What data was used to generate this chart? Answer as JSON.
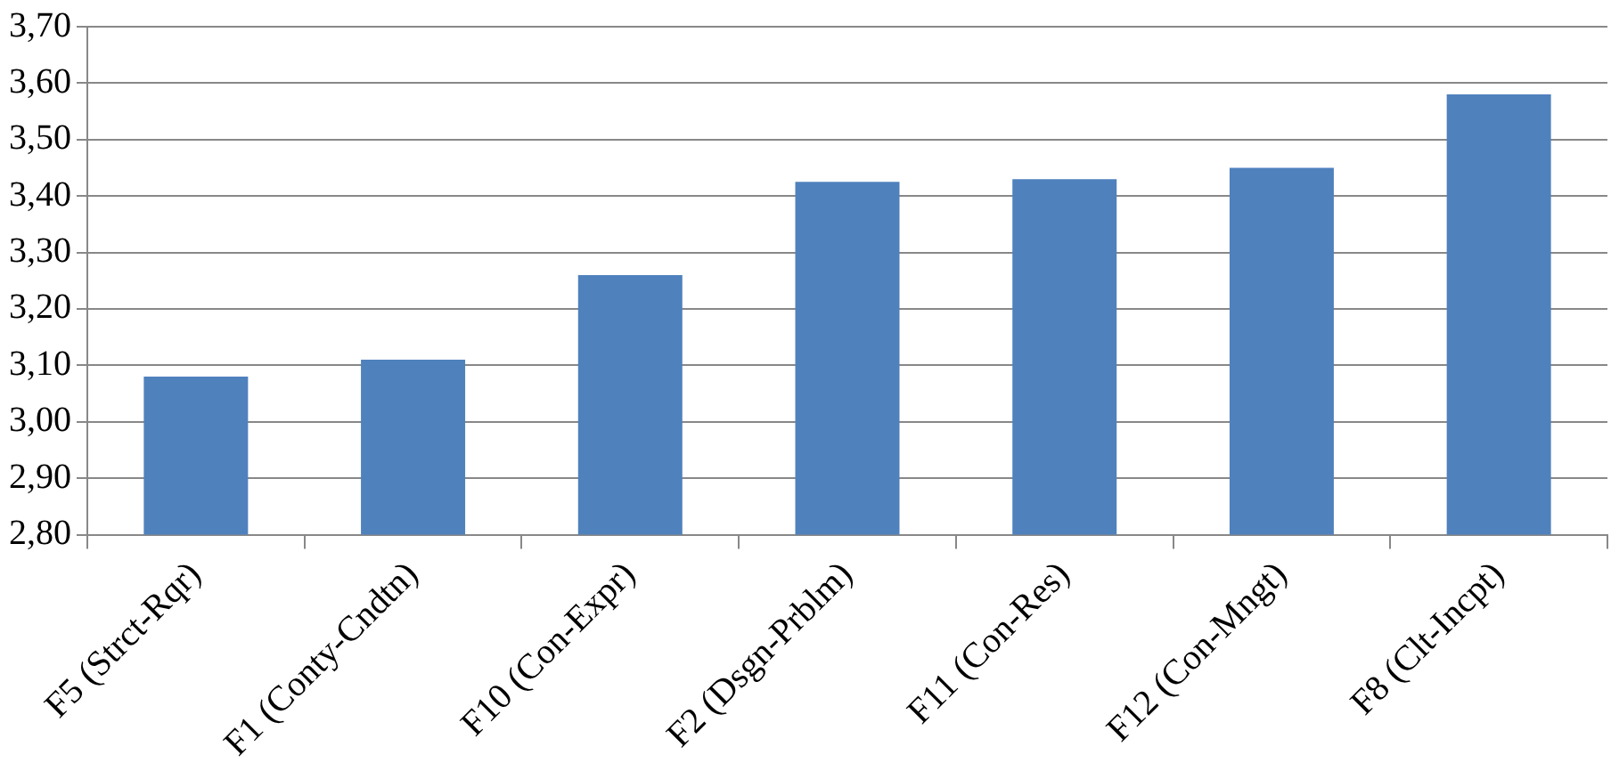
{
  "chart_data": {
    "type": "bar",
    "categories": [
      "F5 (Strct-Rqr)",
      "F1 (Conty-Cndtn)",
      "F10 (Con-Expr)",
      "F2 (Dsgn-Prblm)",
      "F11 (Con-Res)",
      "F12 (Con-Mngt)",
      "F8 (Clt-Incpt)"
    ],
    "values": [
      3.08,
      3.11,
      3.26,
      3.425,
      3.43,
      3.45,
      3.58
    ],
    "color": "#4f81bd",
    "ylim": [
      2.8,
      3.7
    ],
    "yticks": [
      {
        "value": 2.8,
        "label": "2,80"
      },
      {
        "value": 2.9,
        "label": "2,90"
      },
      {
        "value": 3.0,
        "label": "3,00"
      },
      {
        "value": 3.1,
        "label": "3,10"
      },
      {
        "value": 3.2,
        "label": "3,20"
      },
      {
        "value": 3.3,
        "label": "3,30"
      },
      {
        "value": 3.4,
        "label": "3,40"
      },
      {
        "value": 3.5,
        "label": "3,50"
      },
      {
        "value": 3.6,
        "label": "3,60"
      },
      {
        "value": 3.7,
        "label": "3,70"
      }
    ],
    "grid": "y"
  }
}
